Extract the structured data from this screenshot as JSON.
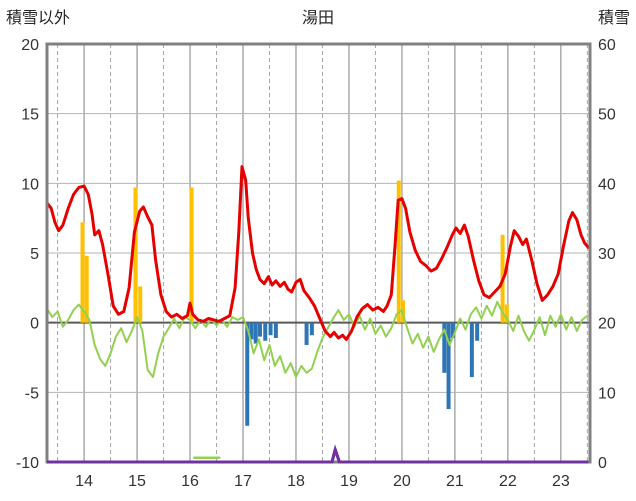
{
  "chart_data": {
    "type": "line",
    "title": "湯田",
    "left_axis": {
      "label": "積雪以外",
      "min": -10,
      "max": 20,
      "ticks": [
        20,
        15,
        10,
        5,
        0,
        -5,
        -10
      ]
    },
    "right_axis": {
      "label": "積雪",
      "min": 0,
      "max": 60,
      "ticks": [
        60,
        50,
        40,
        30,
        20,
        10,
        0
      ]
    },
    "x_axis": {
      "min": 13.3,
      "max": 23.55,
      "ticks": [
        14,
        15,
        16,
        17,
        18,
        19,
        20,
        21,
        22,
        23
      ]
    },
    "grid": {
      "h_step": 5,
      "v_solid_step": 1,
      "v_dashed_step": 0.5
    },
    "colors": {
      "temperature": "#e60000",
      "green_line": "#92d050",
      "orange_bars": "#ffc000",
      "blue_bars": "#2e75b6",
      "snow_depth": "#7030a0",
      "border": "#808080",
      "grid": "#b3b3b3",
      "zero_line": "#595959",
      "tick_text": "#333333"
    },
    "series": [
      {
        "name": "orange-bars",
        "type": "bar",
        "axis": "left",
        "color": "#ffc000",
        "points": [
          [
            13.97,
            7.2
          ],
          [
            14.05,
            4.8
          ],
          [
            14.97,
            9.7
          ],
          [
            15.06,
            2.6
          ],
          [
            16.03,
            9.7
          ],
          [
            19.94,
            10.2
          ],
          [
            20.02,
            1.6
          ],
          [
            21.9,
            6.3
          ],
          [
            21.98,
            1.3
          ]
        ]
      },
      {
        "name": "blue-bars",
        "type": "bar",
        "axis": "left",
        "color": "#2e75b6",
        "points": [
          [
            17.08,
            -7.4
          ],
          [
            17.16,
            -1.2
          ],
          [
            17.24,
            -1.5
          ],
          [
            17.32,
            -1.0
          ],
          [
            17.42,
            -1.3
          ],
          [
            17.52,
            -0.9
          ],
          [
            17.62,
            -1.1
          ],
          [
            18.2,
            -1.6
          ],
          [
            18.3,
            -0.9
          ],
          [
            20.8,
            -3.6
          ],
          [
            20.88,
            -6.2
          ],
          [
            20.96,
            -1.1
          ],
          [
            21.32,
            -3.9
          ],
          [
            21.42,
            -1.3
          ]
        ]
      },
      {
        "name": "green-line",
        "type": "line",
        "axis": "left",
        "color": "#92d050",
        "width": 2,
        "points": [
          [
            13.3,
            1.0
          ],
          [
            13.4,
            0.4
          ],
          [
            13.5,
            0.8
          ],
          [
            13.6,
            -0.3
          ],
          [
            13.7,
            0.2
          ],
          [
            13.8,
            0.9
          ],
          [
            13.9,
            1.3
          ],
          [
            14.0,
            0.8
          ],
          [
            14.1,
            0.2
          ],
          [
            14.2,
            -1.6
          ],
          [
            14.3,
            -2.6
          ],
          [
            14.4,
            -3.1
          ],
          [
            14.5,
            -2.2
          ],
          [
            14.6,
            -1.0
          ],
          [
            14.7,
            -0.4
          ],
          [
            14.8,
            -1.4
          ],
          [
            14.9,
            -0.6
          ],
          [
            15.0,
            0.4
          ],
          [
            15.1,
            -0.6
          ],
          [
            15.2,
            -3.4
          ],
          [
            15.3,
            -3.9
          ],
          [
            15.4,
            -2.2
          ],
          [
            15.5,
            -1.0
          ],
          [
            15.6,
            -0.4
          ],
          [
            15.7,
            0.3
          ],
          [
            15.8,
            -0.4
          ],
          [
            15.9,
            0.4
          ],
          [
            16.0,
            0.2
          ],
          [
            16.1,
            -0.4
          ],
          [
            16.2,
            0.2
          ],
          [
            16.3,
            -0.3
          ],
          [
            16.4,
            0.3
          ],
          [
            16.5,
            -0.2
          ],
          [
            16.6,
            0.2
          ],
          [
            16.7,
            -0.3
          ],
          [
            16.8,
            0.4
          ],
          [
            16.9,
            0.2
          ],
          [
            17.0,
            0.4
          ],
          [
            17.1,
            -0.6
          ],
          [
            17.2,
            -2.2
          ],
          [
            17.3,
            -1.2
          ],
          [
            17.4,
            -2.7
          ],
          [
            17.5,
            -1.6
          ],
          [
            17.6,
            -3.1
          ],
          [
            17.7,
            -2.4
          ],
          [
            17.8,
            -3.6
          ],
          [
            17.9,
            -2.9
          ],
          [
            18.0,
            -3.9
          ],
          [
            18.1,
            -3.1
          ],
          [
            18.2,
            -3.6
          ],
          [
            18.3,
            -3.3
          ],
          [
            18.4,
            -2.1
          ],
          [
            18.5,
            -1.1
          ],
          [
            18.6,
            -0.4
          ],
          [
            18.7,
            0.3
          ],
          [
            18.8,
            0.9
          ],
          [
            18.9,
            0.2
          ],
          [
            19.0,
            0.6
          ],
          [
            19.1,
            -0.3
          ],
          [
            19.2,
            0.5
          ],
          [
            19.3,
            -0.5
          ],
          [
            19.4,
            0.3
          ],
          [
            19.5,
            -0.8
          ],
          [
            19.6,
            -0.2
          ],
          [
            19.7,
            -1.0
          ],
          [
            19.8,
            -0.4
          ],
          [
            19.9,
            0.6
          ],
          [
            20.0,
            0.9
          ],
          [
            20.1,
            -0.4
          ],
          [
            20.2,
            -1.5
          ],
          [
            20.3,
            -0.8
          ],
          [
            20.4,
            -1.8
          ],
          [
            20.5,
            -1.0
          ],
          [
            20.6,
            -2.1
          ],
          [
            20.7,
            -1.2
          ],
          [
            20.8,
            -0.5
          ],
          [
            20.9,
            -1.6
          ],
          [
            21.0,
            -0.7
          ],
          [
            21.1,
            0.3
          ],
          [
            21.2,
            -0.5
          ],
          [
            21.3,
            0.6
          ],
          [
            21.4,
            1.1
          ],
          [
            21.5,
            0.3
          ],
          [
            21.6,
            1.2
          ],
          [
            21.7,
            0.5
          ],
          [
            21.8,
            1.5
          ],
          [
            21.9,
            0.7
          ],
          [
            22.0,
            0.2
          ],
          [
            22.1,
            -0.6
          ],
          [
            22.2,
            0.5
          ],
          [
            22.3,
            -0.6
          ],
          [
            22.4,
            -1.3
          ],
          [
            22.5,
            -0.5
          ],
          [
            22.6,
            0.4
          ],
          [
            22.7,
            -0.9
          ],
          [
            22.8,
            0.5
          ],
          [
            22.9,
            -0.3
          ],
          [
            23.0,
            0.6
          ],
          [
            23.1,
            -0.5
          ],
          [
            23.2,
            0.4
          ],
          [
            23.3,
            -0.6
          ],
          [
            23.4,
            0.2
          ],
          [
            23.5,
            0.5
          ]
        ]
      },
      {
        "name": "temperature-line",
        "type": "line",
        "axis": "left",
        "color": "#e60000",
        "width": 3,
        "points": [
          [
            13.3,
            8.6
          ],
          [
            13.38,
            8.2
          ],
          [
            13.45,
            7.2
          ],
          [
            13.52,
            6.6
          ],
          [
            13.6,
            7.0
          ],
          [
            13.7,
            8.2
          ],
          [
            13.8,
            9.2
          ],
          [
            13.9,
            9.7
          ],
          [
            14.0,
            9.8
          ],
          [
            14.08,
            9.2
          ],
          [
            14.15,
            7.8
          ],
          [
            14.2,
            6.3
          ],
          [
            14.28,
            6.6
          ],
          [
            14.35,
            5.6
          ],
          [
            14.45,
            3.5
          ],
          [
            14.55,
            1.2
          ],
          [
            14.65,
            0.6
          ],
          [
            14.75,
            0.8
          ],
          [
            14.85,
            2.5
          ],
          [
            14.95,
            6.5
          ],
          [
            15.05,
            8.0
          ],
          [
            15.12,
            8.3
          ],
          [
            15.2,
            7.6
          ],
          [
            15.28,
            7.0
          ],
          [
            15.35,
            4.5
          ],
          [
            15.45,
            2.0
          ],
          [
            15.55,
            0.8
          ],
          [
            15.65,
            0.4
          ],
          [
            15.75,
            0.6
          ],
          [
            15.85,
            0.3
          ],
          [
            15.95,
            0.5
          ],
          [
            16.0,
            1.4
          ],
          [
            16.05,
            0.6
          ],
          [
            16.15,
            0.2
          ],
          [
            16.25,
            0.1
          ],
          [
            16.35,
            0.3
          ],
          [
            16.45,
            0.2
          ],
          [
            16.55,
            0.1
          ],
          [
            16.65,
            0.3
          ],
          [
            16.75,
            0.5
          ],
          [
            16.85,
            2.5
          ],
          [
            16.92,
            6.5
          ],
          [
            16.98,
            11.2
          ],
          [
            17.05,
            10.2
          ],
          [
            17.1,
            7.5
          ],
          [
            17.18,
            5.0
          ],
          [
            17.25,
            3.8
          ],
          [
            17.32,
            3.1
          ],
          [
            17.4,
            2.8
          ],
          [
            17.48,
            3.3
          ],
          [
            17.55,
            2.7
          ],
          [
            17.62,
            3.0
          ],
          [
            17.7,
            2.6
          ],
          [
            17.78,
            2.9
          ],
          [
            17.85,
            2.4
          ],
          [
            17.92,
            2.2
          ],
          [
            18.0,
            2.9
          ],
          [
            18.08,
            3.1
          ],
          [
            18.15,
            2.3
          ],
          [
            18.25,
            1.8
          ],
          [
            18.35,
            1.2
          ],
          [
            18.45,
            0.3
          ],
          [
            18.55,
            -0.6
          ],
          [
            18.65,
            -1.0
          ],
          [
            18.72,
            -0.7
          ],
          [
            18.8,
            -1.1
          ],
          [
            18.88,
            -0.9
          ],
          [
            18.95,
            -1.2
          ],
          [
            19.05,
            -0.6
          ],
          [
            19.15,
            0.4
          ],
          [
            19.25,
            1.0
          ],
          [
            19.35,
            1.3
          ],
          [
            19.45,
            0.9
          ],
          [
            19.55,
            1.1
          ],
          [
            19.65,
            0.8
          ],
          [
            19.72,
            1.2
          ],
          [
            19.8,
            2.0
          ],
          [
            19.87,
            5.5
          ],
          [
            19.93,
            8.8
          ],
          [
            20.0,
            8.9
          ],
          [
            20.07,
            8.2
          ],
          [
            20.15,
            6.5
          ],
          [
            20.25,
            5.2
          ],
          [
            20.35,
            4.4
          ],
          [
            20.45,
            4.1
          ],
          [
            20.55,
            3.7
          ],
          [
            20.65,
            3.9
          ],
          [
            20.75,
            4.6
          ],
          [
            20.85,
            5.4
          ],
          [
            20.95,
            6.3
          ],
          [
            21.02,
            6.8
          ],
          [
            21.1,
            6.4
          ],
          [
            21.18,
            7.0
          ],
          [
            21.25,
            6.2
          ],
          [
            21.35,
            4.5
          ],
          [
            21.45,
            3.0
          ],
          [
            21.55,
            2.0
          ],
          [
            21.65,
            1.8
          ],
          [
            21.75,
            2.2
          ],
          [
            21.85,
            2.6
          ],
          [
            21.95,
            3.5
          ],
          [
            22.05,
            5.5
          ],
          [
            22.12,
            6.6
          ],
          [
            22.2,
            6.2
          ],
          [
            22.28,
            5.6
          ],
          [
            22.35,
            6.0
          ],
          [
            22.45,
            4.5
          ],
          [
            22.55,
            2.8
          ],
          [
            22.65,
            1.6
          ],
          [
            22.75,
            2.0
          ],
          [
            22.85,
            2.6
          ],
          [
            22.95,
            3.5
          ],
          [
            23.05,
            5.5
          ],
          [
            23.15,
            7.3
          ],
          [
            23.22,
            7.9
          ],
          [
            23.3,
            7.4
          ],
          [
            23.38,
            6.3
          ],
          [
            23.45,
            5.7
          ],
          [
            23.52,
            5.4
          ]
        ]
      },
      {
        "name": "snow-green-segment",
        "type": "line",
        "axis": "right",
        "color": "#92d050",
        "width": 2.5,
        "points": [
          [
            16.08,
            0.6
          ],
          [
            16.55,
            0.6
          ]
        ]
      },
      {
        "name": "snow-depth-line",
        "type": "line",
        "axis": "right",
        "color": "#7030a0",
        "width": 3,
        "points": [
          [
            13.3,
            0
          ],
          [
            18.68,
            0
          ],
          [
            18.74,
            1.8
          ],
          [
            18.82,
            0
          ],
          [
            23.52,
            0
          ]
        ]
      }
    ]
  }
}
